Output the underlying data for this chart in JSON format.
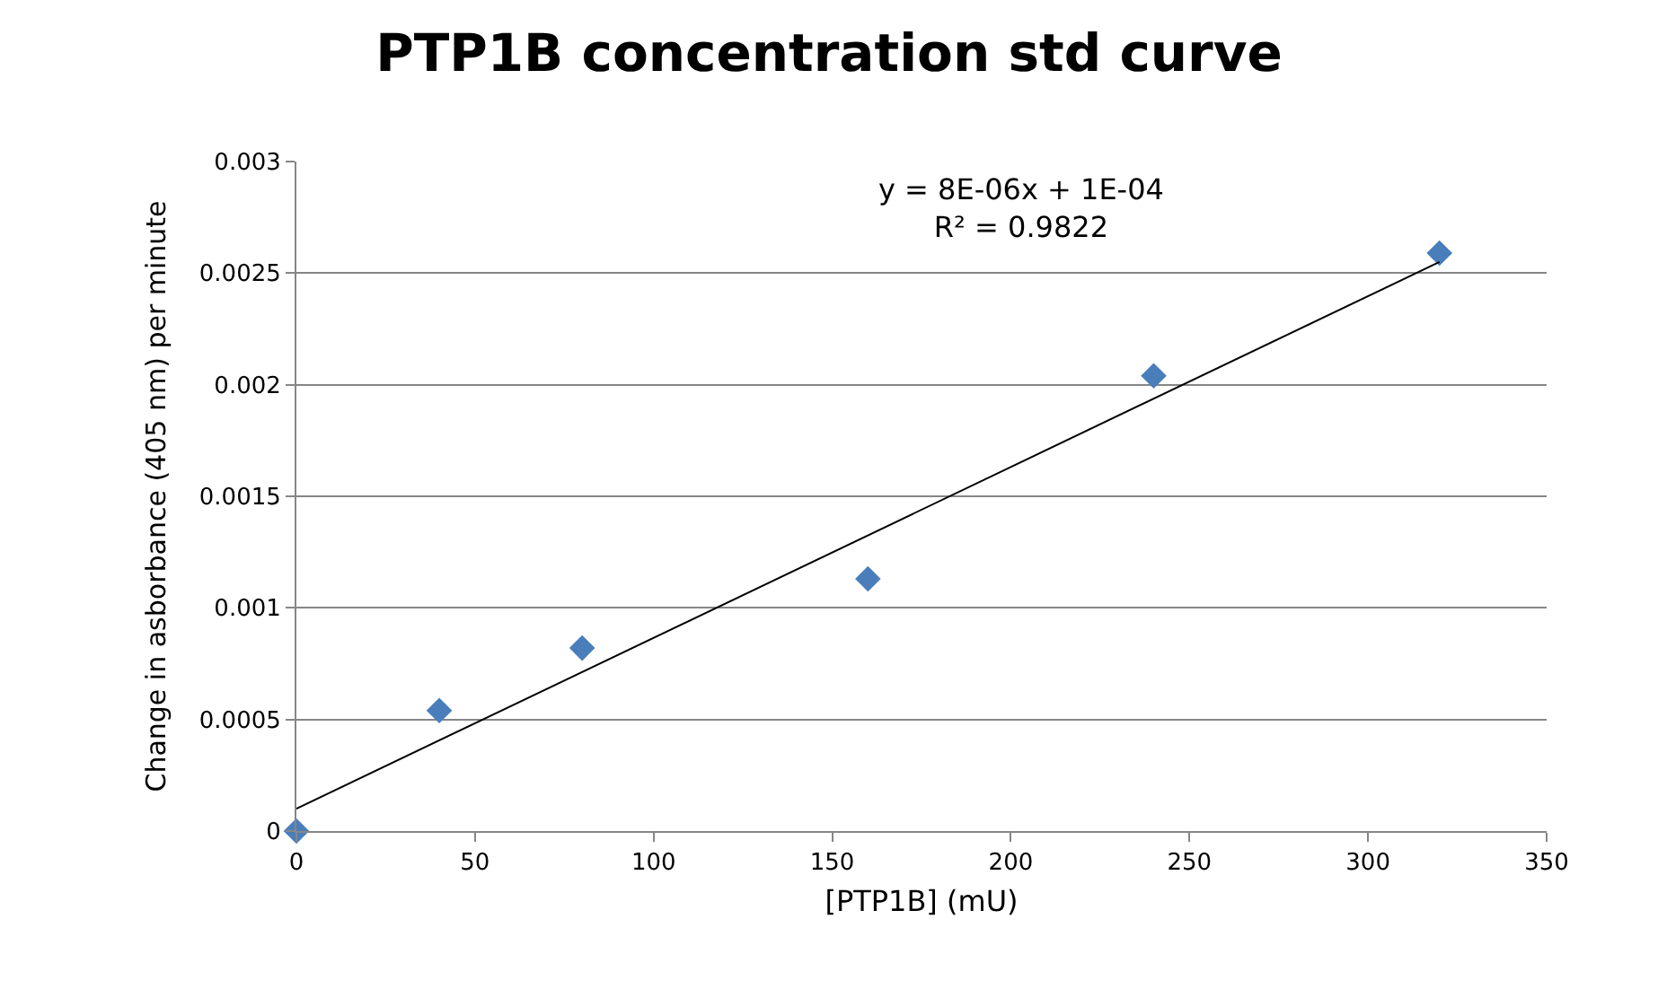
{
  "chart_data": {
    "type": "scatter",
    "title": "PTP1B concentration std curve",
    "xlabel": "[PTP1B] (mU)",
    "ylabel": "Change in asborbance (405 nm) per minute",
    "xlim": [
      0,
      350
    ],
    "xticks": [
      0,
      50,
      100,
      150,
      200,
      250,
      300,
      350
    ],
    "ylim": [
      0,
      0.003
    ],
    "yticks": [
      0,
      0.0005,
      0.001,
      0.0015,
      0.002,
      0.0025,
      0.003
    ],
    "grid": "y",
    "marker": "diamond",
    "annotations": [
      "y = 8E-06x + 1E-04\nR² = 0.9822"
    ],
    "series": [
      {
        "type": "scatter",
        "color": "#4a7ebb",
        "x": [
          0,
          40,
          80,
          160,
          240,
          320
        ],
        "values": [
          0,
          0.00054,
          0.00082,
          0.00113,
          0.00204,
          0.00259
        ]
      },
      {
        "type": "line",
        "color": "#000000",
        "marker": "none",
        "x": [
          0,
          320
        ],
        "values": [
          0.0001,
          0.00255
        ]
      }
    ]
  }
}
